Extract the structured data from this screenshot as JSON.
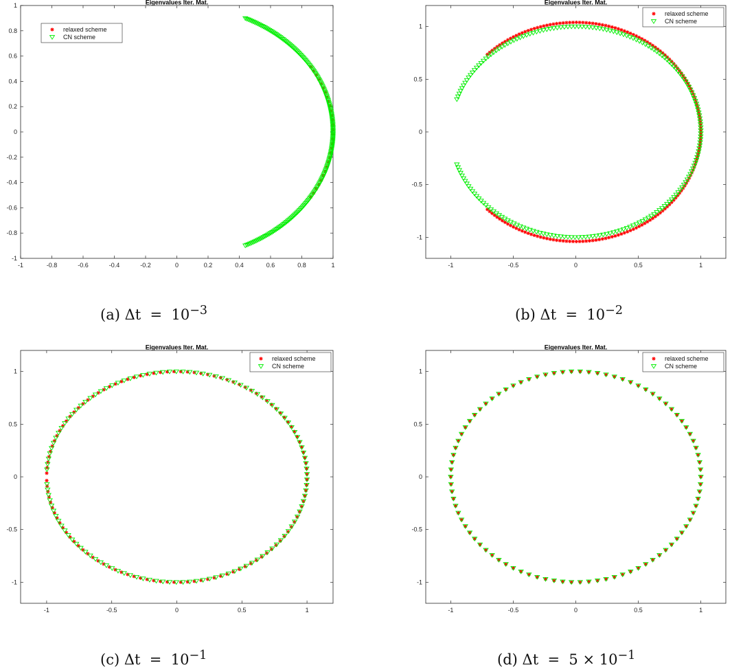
{
  "chart_data": [
    {
      "type": "scatter",
      "title": "Eigenvalues Iter. Mat.",
      "caption": {
        "label": "(a)",
        "expr": "Δt  =  10",
        "sup": "−3"
      },
      "xlim": [
        -1,
        1
      ],
      "ylim": [
        -1,
        1
      ],
      "xticks": [
        -1,
        -0.8,
        -0.6,
        -0.4,
        -0.2,
        0,
        0.2,
        0.4,
        0.6,
        0.8,
        1
      ],
      "xticklabels": [
        "-1",
        "-0.8",
        "-0.6",
        "-0.4",
        "-0.2",
        "0",
        "0.2",
        "0.4",
        "0.6",
        "0.8",
        "1"
      ],
      "yticks": [
        -1,
        -0.8,
        -0.6,
        -0.4,
        -0.2,
        0,
        0.2,
        0.4,
        0.6,
        0.8,
        1
      ],
      "yticklabels": [
        "-1",
        "-0.8",
        "-0.6",
        "-0.4",
        "-0.2",
        "0",
        "0.2",
        "0.4",
        "0.6",
        "0.8",
        "1"
      ],
      "legend": {
        "position": "top-left",
        "entries": [
          "relaxed scheme",
          "CN scheme"
        ]
      },
      "series": [
        {
          "name": "relaxed scheme",
          "marker": "asterisk",
          "color": "#ff0000",
          "shape": "arc",
          "cx": 0,
          "rx": 1.0,
          "ry": 1.0,
          "angle_start": -31,
          "angle_end": 31,
          "n": 30
        },
        {
          "name": "CN scheme",
          "marker": "triangle-down",
          "color": "#00ee00",
          "shape": "arc",
          "cx": 0,
          "rx": 1.0,
          "ry": 1.0,
          "angle_start": -64,
          "angle_end": 64,
          "n": 200
        }
      ]
    },
    {
      "type": "scatter",
      "title": "Eigenvalues Iter. Mat.",
      "caption": {
        "label": "(b)",
        "expr": "Δt  =  10",
        "sup": "−2"
      },
      "xlim": [
        -1.2,
        1.2
      ],
      "ylim": [
        -1.2,
        1.2
      ],
      "xticks": [
        -1,
        -0.5,
        0,
        0.5,
        1
      ],
      "xticklabels": [
        "-1",
        "-0.5",
        "0",
        "0.5",
        "1"
      ],
      "yticks": [
        -1,
        -0.5,
        0,
        0.5,
        1
      ],
      "yticklabels": [
        "-1",
        "-0.5",
        "0",
        "0.5",
        "1"
      ],
      "legend": {
        "position": "top-right",
        "entries": [
          "relaxed scheme",
          "CN scheme"
        ]
      },
      "series": [
        {
          "name": "relaxed scheme",
          "marker": "asterisk",
          "color": "#ff0000",
          "shape": "arc",
          "cx": 0,
          "rx": 1.0,
          "ry": 1.04,
          "angle_start": -135,
          "angle_end": 135,
          "n": 180
        },
        {
          "name": "CN scheme",
          "marker": "triangle-down",
          "color": "#00ee00",
          "shape": "arc",
          "cx": 0,
          "rx": 1.0,
          "ry": 1.0,
          "angle_start": -162,
          "angle_end": 162,
          "n": 200
        }
      ]
    },
    {
      "type": "scatter",
      "title": "Eigenvalues Iter. Mat.",
      "caption": {
        "label": "(c)",
        "expr": "Δt  =  10",
        "sup": "−1"
      },
      "xlim": [
        -1.2,
        1.2
      ],
      "ylim": [
        -1.2,
        1.2
      ],
      "xticks": [
        -1,
        -0.5,
        0,
        0.5,
        1
      ],
      "xticklabels": [
        "-1",
        "-0.5",
        "0",
        "0.5",
        "1"
      ],
      "yticks": [
        -1,
        -0.5,
        0,
        0.5,
        1
      ],
      "yticklabels": [
        "-1",
        "-0.5",
        "0",
        "0.5",
        "1"
      ],
      "legend": {
        "position": "top-right",
        "entries": [
          "relaxed scheme",
          "CN scheme"
        ]
      },
      "series": [
        {
          "name": "relaxed scheme",
          "marker": "asterisk",
          "color": "#ff0000",
          "shape": "arc",
          "cx": 0,
          "rx": 1.0,
          "ry": 1.0,
          "angle_start": -178,
          "angle_end": 178,
          "n": 120
        },
        {
          "name": "CN scheme",
          "marker": "triangle-down",
          "color": "#00ee00",
          "shape": "arc",
          "cx": 0,
          "rx": 1.0,
          "ry": 1.0,
          "angle_start": -176,
          "angle_end": 176,
          "n": 120
        }
      ]
    },
    {
      "type": "scatter",
      "title": "Eigenvalues Iter. Mat.",
      "caption": {
        "label": "(d)",
        "expr": "Δt  =  5 × 10",
        "sup": "−1"
      },
      "xlim": [
        -1.2,
        1.2
      ],
      "ylim": [
        -1.2,
        1.2
      ],
      "xticks": [
        -1,
        -0.5,
        0,
        0.5,
        1
      ],
      "xticklabels": [
        "-1",
        "-0.5",
        "0",
        "0.5",
        "1"
      ],
      "yticks": [
        -1,
        -0.5,
        0,
        0.5,
        1
      ],
      "yticklabels": [
        "-1",
        "-0.5",
        "0",
        "0.5",
        "1"
      ],
      "legend": {
        "position": "top-right",
        "entries": [
          "relaxed scheme",
          "CN scheme"
        ]
      },
      "series": [
        {
          "name": "relaxed scheme",
          "marker": "asterisk",
          "color": "#ff0000",
          "shape": "arc",
          "cx": 0,
          "rx": 1.0,
          "ry": 1.0,
          "angle_start": 0,
          "angle_end": 360,
          "n": 90
        },
        {
          "name": "CN scheme",
          "marker": "triangle-down",
          "color": "#00ee00",
          "shape": "arc",
          "cx": 0,
          "rx": 1.0,
          "ry": 1.0,
          "angle_start": 0,
          "angle_end": 360,
          "n": 90
        }
      ]
    }
  ]
}
